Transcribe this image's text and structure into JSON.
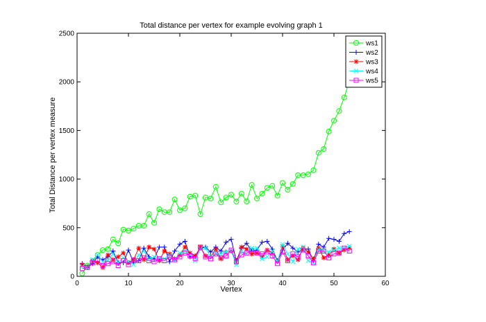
{
  "chart_data": {
    "type": "line",
    "title": "Total distance per vertex for example evolving graph 1",
    "xlabel": "Vertex",
    "ylabel": "Total Distance per vertex measure",
    "xlim": [
      0,
      60
    ],
    "ylim": [
      0,
      2500
    ],
    "xticks": [
      0,
      10,
      20,
      30,
      40,
      50,
      60
    ],
    "yticks": [
      0,
      500,
      1000,
      1500,
      2000,
      2500
    ],
    "grid": false,
    "legend_position": "top-right",
    "x": [
      1,
      2,
      3,
      4,
      5,
      6,
      7,
      8,
      9,
      10,
      11,
      12,
      13,
      14,
      15,
      16,
      17,
      18,
      19,
      20,
      21,
      22,
      23,
      24,
      25,
      26,
      27,
      28,
      29,
      30,
      31,
      32,
      33,
      34,
      35,
      36,
      37,
      38,
      39,
      40,
      41,
      42,
      43,
      44,
      45,
      46,
      47,
      48,
      49,
      50,
      51,
      52,
      53
    ],
    "series": [
      {
        "name": "ws1",
        "color": "#00ff00",
        "marker": "circle",
        "values": [
          30,
          110,
          150,
          220,
          270,
          280,
          380,
          340,
          480,
          470,
          490,
          520,
          520,
          640,
          550,
          690,
          660,
          660,
          790,
          680,
          700,
          820,
          830,
          640,
          810,
          800,
          920,
          760,
          810,
          840,
          770,
          850,
          770,
          940,
          800,
          850,
          910,
          930,
          830,
          960,
          890,
          950,
          1040,
          1040,
          1050,
          1090,
          1270,
          1310,
          1490,
          1600,
          1700,
          1840,
          2010
        ]
      },
      {
        "name": "ws2",
        "color": "#0000ff",
        "marker": "plus",
        "values": [
          130,
          90,
          130,
          200,
          170,
          200,
          260,
          140,
          140,
          270,
          140,
          160,
          290,
          200,
          180,
          300,
          300,
          150,
          260,
          330,
          360,
          200,
          210,
          290,
          300,
          250,
          300,
          260,
          350,
          380,
          160,
          290,
          340,
          260,
          270,
          350,
          360,
          280,
          160,
          270,
          340,
          290,
          250,
          280,
          280,
          160,
          330,
          300,
          390,
          380,
          360,
          440,
          460
        ]
      },
      {
        "name": "ws3",
        "color": "#ff0000",
        "marker": "star",
        "values": [
          120,
          100,
          160,
          140,
          90,
          220,
          170,
          200,
          240,
          140,
          170,
          290,
          170,
          300,
          280,
          160,
          260,
          230,
          180,
          220,
          300,
          240,
          210,
          300,
          210,
          200,
          280,
          180,
          250,
          260,
          140,
          300,
          280,
          230,
          240,
          200,
          270,
          240,
          160,
          310,
          170,
          210,
          170,
          290,
          250,
          180,
          290,
          190,
          220,
          280,
          240,
          270,
          290
        ]
      },
      {
        "name": "ws4",
        "color": "#00ffff",
        "marker": "x",
        "values": [
          100,
          90,
          170,
          220,
          150,
          160,
          230,
          140,
          190,
          150,
          120,
          220,
          260,
          180,
          200,
          190,
          180,
          220,
          170,
          240,
          260,
          220,
          160,
          280,
          290,
          200,
          240,
          230,
          250,
          260,
          120,
          260,
          230,
          290,
          290,
          180,
          200,
          260,
          150,
          330,
          230,
          150,
          280,
          300,
          160,
          140,
          280,
          260,
          250,
          270,
          290,
          290,
          310
        ]
      },
      {
        "name": "ws5",
        "color": "#ff00ff",
        "marker": "square",
        "values": [
          80,
          90,
          140,
          160,
          110,
          130,
          150,
          110,
          160,
          120,
          170,
          160,
          190,
          160,
          150,
          180,
          160,
          200,
          170,
          200,
          240,
          210,
          180,
          300,
          200,
          180,
          230,
          190,
          210,
          270,
          150,
          220,
          240,
          260,
          240,
          230,
          250,
          210,
          130,
          250,
          160,
          230,
          200,
          270,
          210,
          140,
          260,
          260,
          190,
          230,
          240,
          290,
          260
        ]
      }
    ]
  }
}
